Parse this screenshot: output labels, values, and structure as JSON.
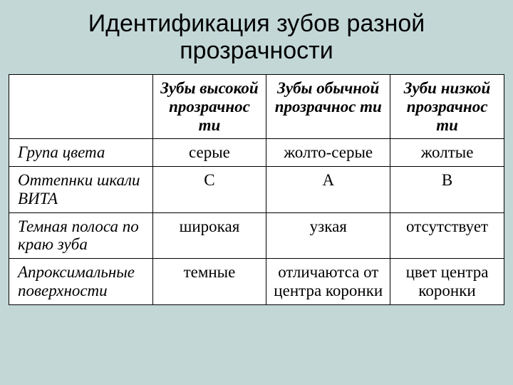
{
  "title": "Идентификация зубов разной прозрачности",
  "table": {
    "columns": [
      "",
      "Зубы высокой прозрачнос ти",
      "Зубы обычной прозрачнос ти",
      "Зуби низкой прозрачнос ти"
    ],
    "column_widths_pct": [
      29,
      23,
      25,
      23
    ],
    "rows": [
      {
        "label": "Група цвета",
        "cells": [
          "серые",
          "жолто-серые",
          "жолтые"
        ]
      },
      {
        "label": "Оттепнки шкали ВИТА",
        "cells": [
          "С",
          "А",
          "В"
        ]
      },
      {
        "label": "Темная полоса по краю зуба",
        "cells": [
          "широкая",
          "узкая",
          "отсутствует"
        ]
      },
      {
        "label": "Апроксимальные поверхности",
        "cells": [
          "темные",
          "отличаютса от центра коронки",
          "цвет центра коронки"
        ]
      }
    ],
    "header_font": {
      "style": "italic",
      "weight": "bold",
      "size_pt": 17
    },
    "rowheader_font": {
      "style": "italic",
      "weight": "normal",
      "size_pt": 17
    },
    "cell_font": {
      "style": "normal",
      "weight": "normal",
      "size_pt": 17
    },
    "border_color": "#000000",
    "table_background": "#ffffff"
  },
  "background_color": "#c3d7d7",
  "title_font": {
    "family": "Arial",
    "size_pt": 26,
    "weight": "normal"
  }
}
